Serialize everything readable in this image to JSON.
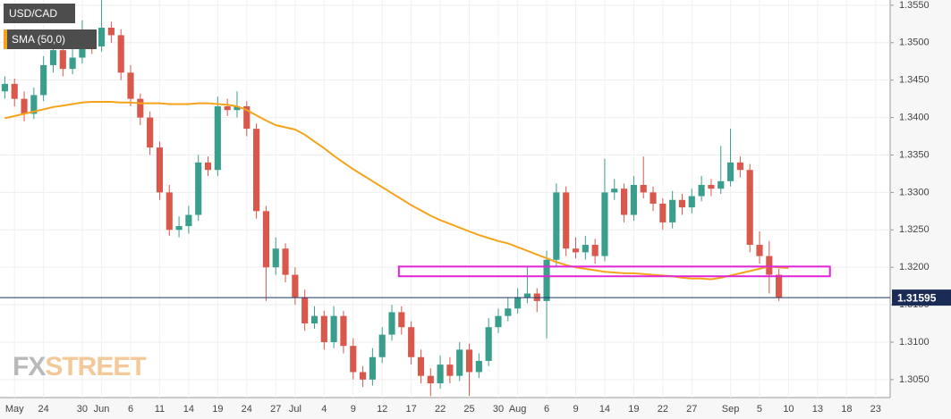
{
  "chart_data": {
    "type": "candlestick",
    "legend": [
      "USD/CAD",
      "SMA (50,0)"
    ],
    "watermark": {
      "fx": "FX",
      "street": "STREET"
    },
    "categories": [
      null,
      "May",
      null,
      null,
      "24",
      null,
      null,
      null,
      "30",
      null,
      "Jun",
      null,
      null,
      "6",
      null,
      null,
      "11",
      null,
      null,
      "14",
      null,
      null,
      "19",
      null,
      null,
      "24",
      null,
      null,
      "27",
      null,
      "Jul",
      null,
      null,
      "4",
      null,
      null,
      "9",
      null,
      null,
      "12",
      null,
      null,
      "17",
      null,
      null,
      "22",
      null,
      null,
      "25",
      null,
      null,
      "30",
      null,
      "Aug",
      null,
      null,
      "6",
      null,
      null,
      "9",
      null,
      null,
      "14",
      null,
      null,
      "19",
      null,
      null,
      "22",
      null,
      null,
      "27",
      null,
      null,
      null,
      "Sep",
      null,
      null,
      "5",
      null,
      null,
      "10",
      null,
      null,
      "13",
      null,
      null,
      "18",
      null,
      null,
      "23",
      null
    ],
    "ohlc": [
      [
        1.3435,
        1.3455,
        1.3425,
        1.3445
      ],
      [
        1.3445,
        1.3452,
        1.3415,
        1.3425
      ],
      [
        1.3425,
        1.3435,
        1.3395,
        1.3405
      ],
      [
        1.3405,
        1.344,
        1.3398,
        1.343
      ],
      [
        1.343,
        1.3482,
        1.3422,
        1.347
      ],
      [
        1.347,
        1.35,
        1.346,
        1.349
      ],
      [
        1.349,
        1.3498,
        1.3455,
        1.3465
      ],
      [
        1.3465,
        1.3492,
        1.3458,
        1.348
      ],
      [
        1.348,
        1.353,
        1.3472,
        1.3505
      ],
      [
        1.3505,
        1.3515,
        1.3485,
        1.3495
      ],
      [
        1.3495,
        1.3562,
        1.3488,
        1.352
      ],
      [
        1.352,
        1.3528,
        1.35,
        1.351
      ],
      [
        1.351,
        1.3518,
        1.345,
        1.346
      ],
      [
        1.346,
        1.347,
        1.3415,
        1.3425
      ],
      [
        1.3425,
        1.3432,
        1.339,
        1.34
      ],
      [
        1.34,
        1.3408,
        1.335,
        1.336
      ],
      [
        1.336,
        1.3368,
        1.329,
        1.33
      ],
      [
        1.33,
        1.331,
        1.3242,
        1.325
      ],
      [
        1.325,
        1.3268,
        1.324,
        1.3255
      ],
      [
        1.3255,
        1.3282,
        1.3245,
        1.327
      ],
      [
        1.327,
        1.335,
        1.3262,
        1.334
      ],
      [
        1.334,
        1.3348,
        1.3322,
        1.333
      ],
      [
        1.333,
        1.3428,
        1.3322,
        1.3415
      ],
      [
        1.3415,
        1.3425,
        1.3402,
        1.341
      ],
      [
        1.341,
        1.3435,
        1.34,
        1.3415
      ],
      [
        1.3415,
        1.3422,
        1.3375,
        1.3385
      ],
      [
        1.3385,
        1.3392,
        1.3265,
        1.3275
      ],
      [
        1.3275,
        1.3282,
        1.3155,
        1.32
      ],
      [
        1.32,
        1.324,
        1.319,
        1.3225
      ],
      [
        1.3225,
        1.3232,
        1.318,
        1.319
      ],
      [
        1.319,
        1.32,
        1.315,
        1.316
      ],
      [
        1.316,
        1.317,
        1.3115,
        1.3125
      ],
      [
        1.3125,
        1.3148,
        1.3118,
        1.3135
      ],
      [
        1.3135,
        1.3142,
        1.309,
        1.31
      ],
      [
        1.31,
        1.3148,
        1.3092,
        1.3135
      ],
      [
        1.3135,
        1.3142,
        1.3085,
        1.3095
      ],
      [
        1.3095,
        1.3105,
        1.305,
        1.306
      ],
      [
        1.306,
        1.3068,
        1.304,
        1.305
      ],
      [
        1.305,
        1.3092,
        1.3042,
        1.308
      ],
      [
        1.308,
        1.312,
        1.3072,
        1.311
      ],
      [
        1.311,
        1.315,
        1.3102,
        1.314
      ],
      [
        1.314,
        1.3148,
        1.311,
        1.312
      ],
      [
        1.312,
        1.3128,
        1.307,
        1.308
      ],
      [
        1.308,
        1.309,
        1.3045,
        1.3055
      ],
      [
        1.3055,
        1.3065,
        1.3028,
        1.3045
      ],
      [
        1.3045,
        1.3082,
        1.3038,
        1.307
      ],
      [
        1.307,
        1.308,
        1.3045,
        1.3055
      ],
      [
        1.3055,
        1.31,
        1.3048,
        1.309
      ],
      [
        1.309,
        1.3098,
        1.3028,
        1.306
      ],
      [
        1.306,
        1.3085,
        1.3052,
        1.3075
      ],
      [
        1.3075,
        1.3132,
        1.3068,
        1.312
      ],
      [
        1.312,
        1.3145,
        1.3112,
        1.3135
      ],
      [
        1.3135,
        1.316,
        1.3128,
        1.3145
      ],
      [
        1.3145,
        1.3172,
        1.3138,
        1.316
      ],
      [
        1.316,
        1.32,
        1.3152,
        1.3165
      ],
      [
        1.3165,
        1.3172,
        1.314,
        1.3155
      ],
      [
        1.3155,
        1.3222,
        1.3105,
        1.321
      ],
      [
        1.321,
        1.3312,
        1.32,
        1.33
      ],
      [
        1.33,
        1.3308,
        1.3215,
        1.3225
      ],
      [
        1.3225,
        1.324,
        1.3212,
        1.322
      ],
      [
        1.322,
        1.3242,
        1.321,
        1.323
      ],
      [
        1.323,
        1.3238,
        1.3205,
        1.3215
      ],
      [
        1.3215,
        1.3345,
        1.3208,
        1.33
      ],
      [
        1.33,
        1.3318,
        1.329,
        1.3305
      ],
      [
        1.3305,
        1.3312,
        1.326,
        1.327
      ],
      [
        1.327,
        1.3322,
        1.3262,
        1.331
      ],
      [
        1.331,
        1.3348,
        1.3292,
        1.33
      ],
      [
        1.33,
        1.3308,
        1.3275,
        1.3285
      ],
      [
        1.3285,
        1.3292,
        1.325,
        1.326
      ],
      [
        1.326,
        1.3302,
        1.3252,
        1.329
      ],
      [
        1.329,
        1.3298,
        1.327,
        1.328
      ],
      [
        1.328,
        1.3305,
        1.3272,
        1.3295
      ],
      [
        1.3295,
        1.3322,
        1.3288,
        1.331
      ],
      [
        1.331,
        1.3318,
        1.3295,
        1.3305
      ],
      [
        1.3305,
        1.3362,
        1.3298,
        1.3315
      ],
      [
        1.3315,
        1.3385,
        1.3308,
        1.334
      ],
      [
        1.334,
        1.3348,
        1.332,
        1.333
      ],
      [
        1.333,
        1.3338,
        1.322,
        1.323
      ],
      [
        1.323,
        1.3248,
        1.3205,
        1.3215
      ],
      [
        1.3215,
        1.3235,
        1.3165,
        1.319
      ],
      [
        1.319,
        1.3198,
        1.3155,
        1.316
      ],
      null,
      null,
      null,
      null,
      null,
      null,
      null,
      null,
      null,
      null,
      null
    ],
    "up_color": "#3a9e8c",
    "down_color": "#d9574b",
    "sma": {
      "name": "SMA (50,0)",
      "color": "#f5a31a",
      "values": [
        1.3399,
        1.3402,
        1.3405,
        1.3408,
        1.3411,
        1.3414,
        1.3416,
        1.3418,
        1.342,
        1.3421,
        1.3421,
        1.3421,
        1.342,
        1.342,
        1.3419,
        1.3419,
        1.3419,
        1.3418,
        1.3418,
        1.3418,
        1.3419,
        1.3419,
        1.3418,
        1.3417,
        1.3415,
        1.341,
        1.3403,
        1.3396,
        1.339,
        1.3387,
        1.3384,
        1.3377,
        1.3368,
        1.3359,
        1.3349,
        1.334,
        1.3331,
        1.3323,
        1.3315,
        1.3307,
        1.3299,
        1.3291,
        1.3283,
        1.3276,
        1.3269,
        1.3263,
        1.3258,
        1.3253,
        1.3248,
        1.3243,
        1.3239,
        1.3235,
        1.3232,
        1.3227,
        1.3222,
        1.3217,
        1.3212,
        1.3207,
        1.3203,
        1.32,
        1.3198,
        1.3196,
        1.3194,
        1.3193,
        1.3192,
        1.3192,
        1.3191,
        1.319,
        1.3189,
        1.3188,
        1.3186,
        1.3185,
        1.3185,
        1.3184,
        1.3186,
        1.3189,
        1.3192,
        1.3195,
        1.3198,
        1.3201,
        1.32,
        1.3199,
        null,
        null,
        null,
        null,
        null,
        null,
        null,
        null,
        null,
        null
      ]
    },
    "zone": {
      "from": 1.3188,
      "to": 1.3201,
      "color": "#e024d8"
    },
    "last_price": 1.31595,
    "ylim": [
      1.3026,
      1.3557
    ],
    "yticks": [
      {
        "value": 1.305,
        "label": "1.3050"
      },
      {
        "value": 1.31,
        "label": "1.3100"
      },
      {
        "value": 1.315,
        "label": "1.3150"
      },
      {
        "value": 1.32,
        "label": "1.3200"
      },
      {
        "value": 1.325,
        "label": "1.3250"
      },
      {
        "value": 1.33,
        "label": "1.3300"
      },
      {
        "value": 1.335,
        "label": "1.3350"
      },
      {
        "value": 1.34,
        "label": "1.3400"
      },
      {
        "value": 1.345,
        "label": "1.3450"
      },
      {
        "value": 1.35,
        "label": "1.3500"
      },
      {
        "value": 1.355,
        "label": "1.3550"
      }
    ],
    "grid": true
  }
}
